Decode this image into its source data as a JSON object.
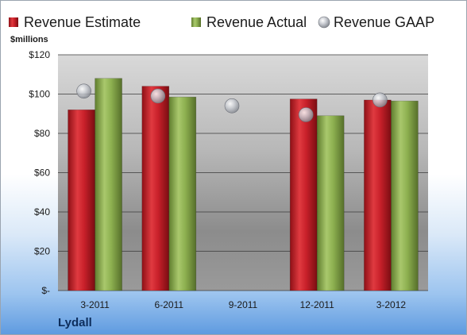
{
  "chart_data": {
    "type": "bar",
    "ylabel": "$millions",
    "company": "Lydall",
    "categories": [
      "3-2011",
      "6-2011",
      "9-2011",
      "12-2011",
      "3-2012"
    ],
    "series": [
      {
        "name": "Revenue Estimate",
        "kind": "bar",
        "color": "#c8202a",
        "values": [
          92,
          104,
          null,
          97.5,
          97
        ]
      },
      {
        "name": "Revenue Actual",
        "kind": "bar",
        "color": "#8db050",
        "values": [
          108,
          98.5,
          null,
          89,
          96.5
        ]
      },
      {
        "name": "Revenue GAAP",
        "kind": "point",
        "color": "#b8bcc4",
        "values": [
          101.5,
          99,
          94,
          89.5,
          97
        ]
      }
    ],
    "ylim": [
      0,
      120
    ],
    "yticks": [
      0,
      20,
      40,
      60,
      80,
      100,
      120
    ],
    "ytick_labels": [
      "$-",
      "$20",
      "$40",
      "$60",
      "$80",
      "$100",
      "$120"
    ],
    "grid": true,
    "legend": "top"
  }
}
